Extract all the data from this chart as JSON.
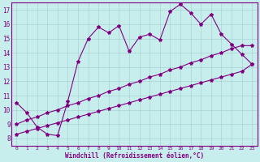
{
  "xlabel": "Windchill (Refroidissement éolien,°C)",
  "bg_color": "#c8eded",
  "line_color": "#800080",
  "grid_color": "#a8d4d4",
  "x_main": [
    0,
    1,
    2,
    3,
    4,
    5,
    6,
    7,
    8,
    9,
    10,
    11,
    12,
    13,
    14,
    15,
    16,
    17,
    18,
    19,
    20,
    21,
    22,
    23
  ],
  "y_main": [
    10.5,
    9.8,
    8.8,
    8.3,
    8.2,
    10.6,
    13.4,
    15.0,
    15.8,
    15.4,
    15.9,
    14.1,
    15.1,
    15.3,
    14.9,
    16.9,
    17.4,
    16.8,
    16.0,
    16.7,
    15.3,
    14.6,
    13.9,
    13.2
  ],
  "x_line1": [
    0,
    1,
    2,
    3,
    4,
    5,
    6,
    7,
    8,
    9,
    10,
    11,
    12,
    13,
    14,
    15,
    16,
    17,
    18,
    19,
    20,
    21,
    22,
    23
  ],
  "y_line1": [
    9.0,
    9.3,
    9.5,
    9.8,
    10.0,
    10.3,
    10.5,
    10.8,
    11.0,
    11.3,
    11.5,
    11.8,
    12.0,
    12.3,
    12.5,
    12.8,
    13.0,
    13.3,
    13.5,
    13.8,
    14.0,
    14.3,
    14.5,
    14.5
  ],
  "x_line2": [
    0,
    1,
    2,
    3,
    4,
    5,
    6,
    7,
    8,
    9,
    10,
    11,
    12,
    13,
    14,
    15,
    16,
    17,
    18,
    19,
    20,
    21,
    22,
    23
  ],
  "y_line2": [
    8.3,
    8.5,
    8.7,
    8.9,
    9.1,
    9.3,
    9.5,
    9.7,
    9.9,
    10.1,
    10.3,
    10.5,
    10.7,
    10.9,
    11.1,
    11.3,
    11.5,
    11.7,
    11.9,
    12.1,
    12.3,
    12.5,
    12.7,
    13.2
  ],
  "xlim": [
    -0.5,
    23.5
  ],
  "ylim": [
    7.5,
    17.5
  ],
  "yticks": [
    8,
    9,
    10,
    11,
    12,
    13,
    14,
    15,
    16,
    17
  ],
  "xticks": [
    0,
    1,
    2,
    3,
    4,
    5,
    6,
    7,
    8,
    9,
    10,
    11,
    12,
    13,
    14,
    15,
    16,
    17,
    18,
    19,
    20,
    21,
    22,
    23
  ]
}
